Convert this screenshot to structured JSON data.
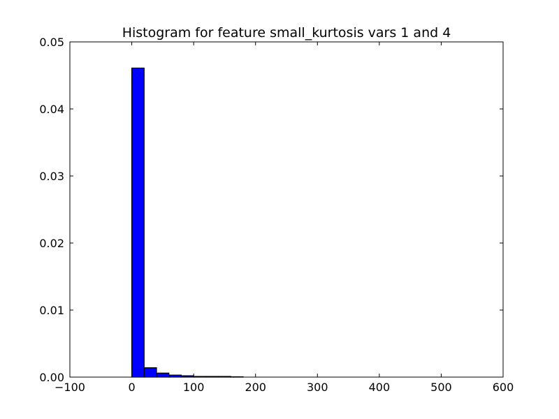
{
  "chart_data": {
    "type": "bar",
    "title": "Histogram for feature small_kurtosis vars 1 and 4",
    "xlabel": "",
    "ylabel": "",
    "xlim": [
      -100,
      600
    ],
    "ylim": [
      0,
      0.05
    ],
    "xticks": [
      -100,
      0,
      100,
      200,
      300,
      400,
      500,
      600
    ],
    "xtick_labels": [
      "−100",
      "0",
      "100",
      "200",
      "300",
      "400",
      "500",
      "600"
    ],
    "yticks": [
      0.0,
      0.01,
      0.02,
      0.03,
      0.04,
      0.05
    ],
    "ytick_labels": [
      "0.00",
      "0.01",
      "0.02",
      "0.03",
      "0.04",
      "0.05"
    ],
    "grid": false,
    "legend": "none",
    "bar_color": "#0000ff",
    "edge_color": "#000000",
    "bins": [
      {
        "x0": 0,
        "x1": 20,
        "value": 0.0461
      },
      {
        "x0": 20,
        "x1": 40,
        "value": 0.0014
      },
      {
        "x0": 40,
        "x1": 60,
        "value": 0.0006
      },
      {
        "x0": 60,
        "x1": 80,
        "value": 0.0003
      },
      {
        "x0": 80,
        "x1": 100,
        "value": 0.0002
      },
      {
        "x0": 100,
        "x1": 120,
        "value": 0.0001
      },
      {
        "x0": 120,
        "x1": 140,
        "value": 0.0001
      },
      {
        "x0": 140,
        "x1": 160,
        "value": 0.0001
      },
      {
        "x0": 160,
        "x1": 180,
        "value": 5e-05
      }
    ]
  }
}
